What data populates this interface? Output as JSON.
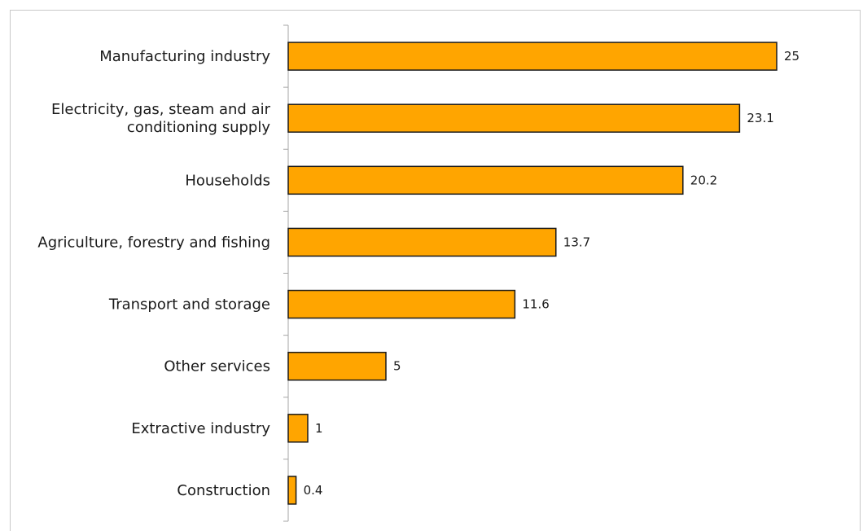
{
  "chart_data": {
    "type": "bar",
    "orientation": "horizontal",
    "categories": [
      [
        "Manufacturing industry"
      ],
      [
        "Electricity, gas, steam and air",
        "conditioning supply"
      ],
      [
        "Households"
      ],
      [
        "Agriculture, forestry and fishing"
      ],
      [
        "Transport and storage"
      ],
      [
        "Other services"
      ],
      [
        "Extractive industry"
      ],
      [
        "Construction"
      ]
    ],
    "values": [
      25,
      23.1,
      20.2,
      13.7,
      11.6,
      5,
      1,
      0.4
    ],
    "data_labels": [
      "25",
      "23.1",
      "20.2",
      "13.7",
      "11.6",
      "5",
      "1",
      "0.4"
    ],
    "xlim": [
      0,
      25
    ],
    "bar_color": "#FFA500",
    "bar_edge_color": "#1a1a1a",
    "axis_color": "#a6a6a6",
    "grid": false,
    "legend": false
  }
}
